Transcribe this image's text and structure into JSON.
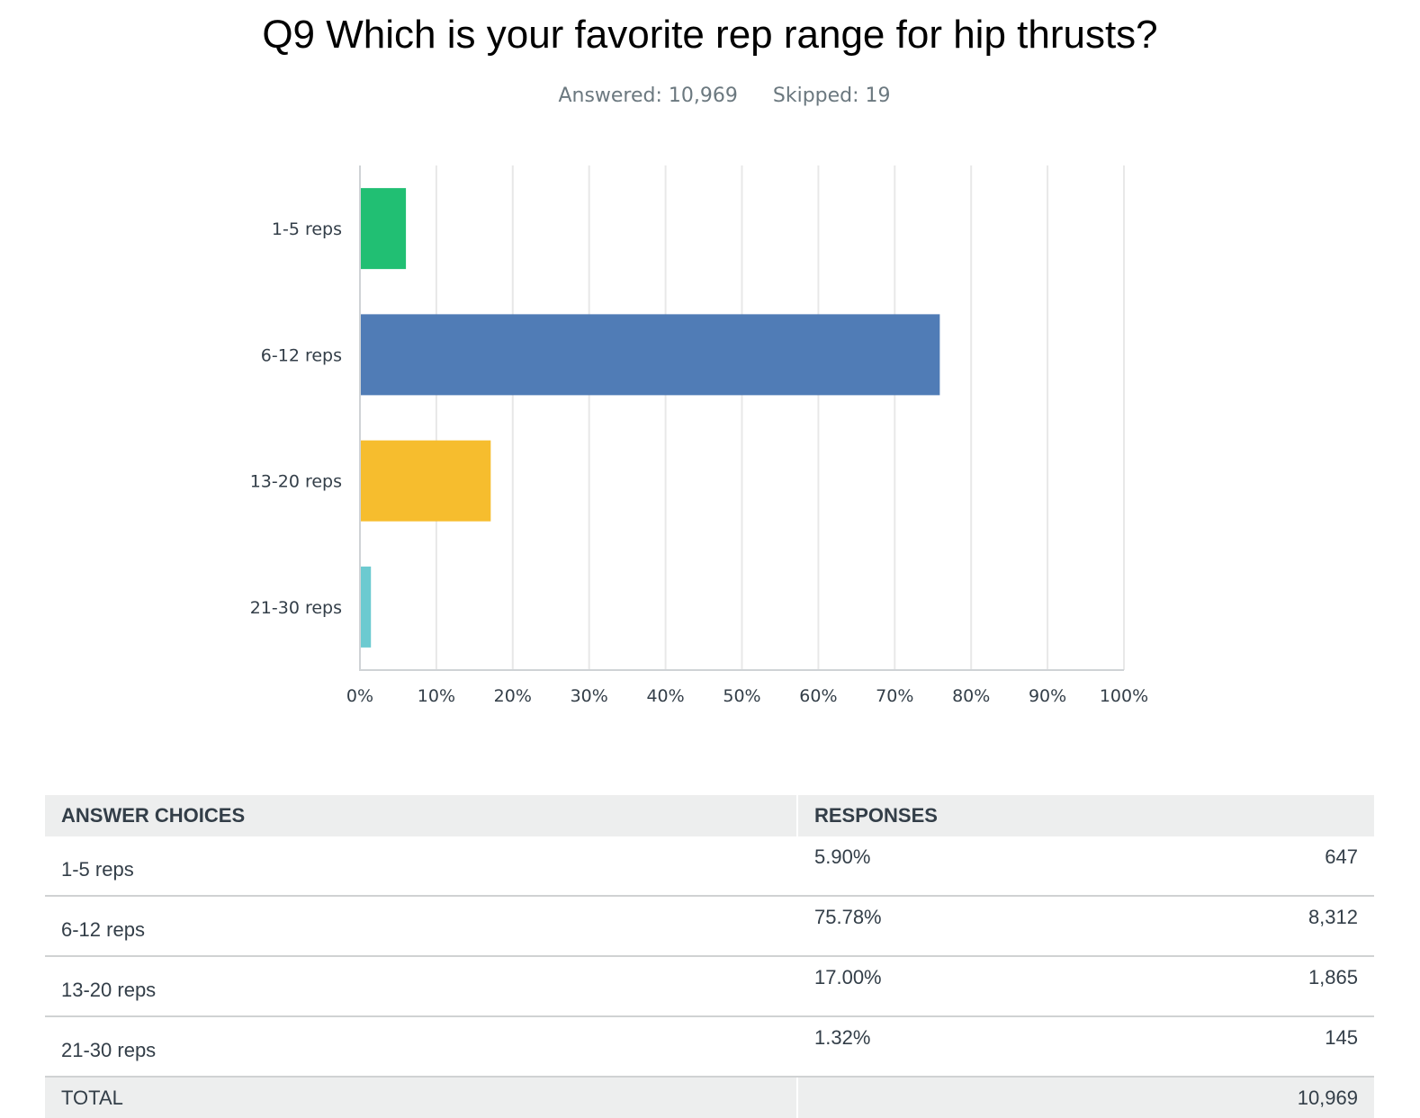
{
  "header": {
    "question": "Q9 Which is your favorite rep range for hip thrusts?",
    "answered": "Answered: 10,969",
    "skipped": "Skipped: 19"
  },
  "colors": {
    "series": [
      "#21bf73",
      "#507cb6",
      "#f6bd2e",
      "#6ccad0"
    ],
    "grid": "#e8e8e8",
    "axis": "#cfd3d6"
  },
  "chart_data": {
    "type": "bar",
    "orientation": "horizontal",
    "title": "Q9 Which is your favorite rep range for hip thrusts?",
    "categories": [
      "1-5 reps",
      "6-12 reps",
      "13-20 reps",
      "21-30 reps"
    ],
    "values": [
      5.9,
      75.78,
      17.0,
      1.32
    ],
    "unit": "%",
    "xlim": [
      0,
      100
    ],
    "xticks": [
      "0%",
      "10%",
      "20%",
      "30%",
      "40%",
      "50%",
      "60%",
      "70%",
      "80%",
      "90%",
      "100%"
    ],
    "grid": true,
    "legend": "none"
  },
  "table": {
    "headers": [
      "ANSWER CHOICES",
      "RESPONSES"
    ],
    "rows": [
      {
        "choice": "1-5 reps",
        "percent": "5.90%",
        "count": "647"
      },
      {
        "choice": "6-12 reps",
        "percent": "75.78%",
        "count": "8,312"
      },
      {
        "choice": "13-20 reps",
        "percent": "17.00%",
        "count": "1,865"
      },
      {
        "choice": "21-30 reps",
        "percent": "1.32%",
        "count": "145"
      }
    ],
    "total_label": "TOTAL",
    "total_count": "10,969"
  }
}
